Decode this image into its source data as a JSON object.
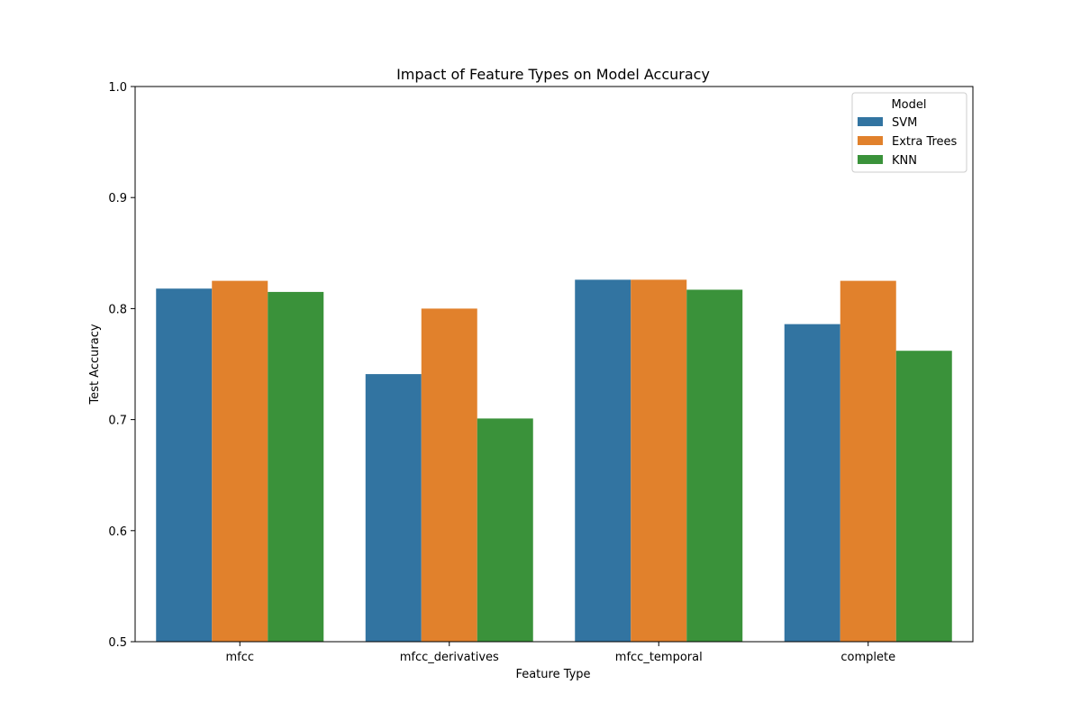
{
  "chart_data": {
    "type": "bar",
    "title": "Impact of Feature Types on Model Accuracy",
    "xlabel": "Feature Type",
    "ylabel": "Test Accuracy",
    "ylim": [
      0.5,
      1.0
    ],
    "yticks": [
      "0.5",
      "0.6",
      "0.7",
      "0.8",
      "0.9",
      "1.0"
    ],
    "categories": [
      "mfcc",
      "mfcc_derivatives",
      "mfcc_temporal",
      "complete"
    ],
    "series": [
      {
        "name": "SVM",
        "color": "#3274a1",
        "values": [
          0.818,
          0.741,
          0.826,
          0.786
        ]
      },
      {
        "name": "Extra Trees",
        "color": "#e1812c",
        "values": [
          0.825,
          0.8,
          0.826,
          0.825
        ]
      },
      {
        "name": "KNN",
        "color": "#3a923a",
        "values": [
          0.815,
          0.701,
          0.817,
          0.762
        ]
      }
    ],
    "legend": {
      "title": "Model",
      "position": "top-right"
    },
    "grid": false
  }
}
